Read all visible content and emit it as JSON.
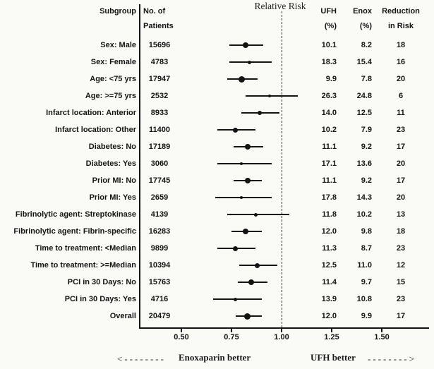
{
  "title": "Relative Risk",
  "colors": {
    "ink": "#131313",
    "background": "#fafaf7"
  },
  "columns": {
    "subgroup": "Subgroup",
    "patients1": "No. of",
    "patients2": "Patients",
    "ufh1": "UFH",
    "ufh2": "(%)",
    "enox1": "Enox",
    "enox2": "(%)",
    "reduction1": "Reduction",
    "reduction2": "in Risk"
  },
  "footer": {
    "left_arrow": "<--------",
    "left_label": "Enoxaparin better",
    "right_label": "UFH better",
    "right_arrow": "-------->"
  },
  "chart_data": {
    "type": "forest",
    "title": "Relative Risk",
    "xlabel": "Relative Risk",
    "xlim": [
      0.29,
      1.73
    ],
    "axis_ticks": [
      0.5,
      0.75,
      1.0,
      1.25,
      1.5
    ],
    "tick_labels": [
      "0.50",
      "0.75",
      "1.00",
      "1.25",
      "1.50"
    ],
    "reference_line": 1.0,
    "legend": "marker size proportional to number of patients",
    "rows": [
      {
        "subgroup": "Sex: Male",
        "patients": "15696",
        "rr": 0.82,
        "ci_low": 0.74,
        "ci_high": 0.91,
        "ufh": "10.1",
        "enox": "8.2",
        "reduction": "18"
      },
      {
        "subgroup": "Sex: Female",
        "patients": "4783",
        "rr": 0.84,
        "ci_low": 0.74,
        "ci_high": 0.95,
        "ufh": "18.3",
        "enox": "15.4",
        "reduction": "16"
      },
      {
        "subgroup": "Age: <75 yrs",
        "patients": "17947",
        "rr": 0.8,
        "ci_low": 0.73,
        "ci_high": 0.88,
        "ufh": "9.9",
        "enox": "7.8",
        "reduction": "20"
      },
      {
        "subgroup": "Age: >=75 yrs",
        "patients": "2532",
        "rr": 0.94,
        "ci_low": 0.82,
        "ci_high": 1.08,
        "ufh": "26.3",
        "enox": "24.8",
        "reduction": "6"
      },
      {
        "subgroup": "Infarct location: Anterior",
        "patients": "8933",
        "rr": 0.89,
        "ci_low": 0.8,
        "ci_high": 0.99,
        "ufh": "14.0",
        "enox": "12.5",
        "reduction": "11"
      },
      {
        "subgroup": "Infarct location: Other",
        "patients": "11400",
        "rr": 0.77,
        "ci_low": 0.68,
        "ci_high": 0.87,
        "ufh": "10.2",
        "enox": "7.9",
        "reduction": "23"
      },
      {
        "subgroup": "Diabetes: No",
        "patients": "17189",
        "rr": 0.83,
        "ci_low": 0.76,
        "ci_high": 0.91,
        "ufh": "11.1",
        "enox": "9.2",
        "reduction": "17"
      },
      {
        "subgroup": "Diabetes: Yes",
        "patients": "3060",
        "rr": 0.8,
        "ci_low": 0.68,
        "ci_high": 0.95,
        "ufh": "17.1",
        "enox": "13.6",
        "reduction": "20"
      },
      {
        "subgroup": "Prior MI: No",
        "patients": "17745",
        "rr": 0.83,
        "ci_low": 0.76,
        "ci_high": 0.9,
        "ufh": "11.1",
        "enox": "9.2",
        "reduction": "17"
      },
      {
        "subgroup": "Prior MI: Yes",
        "patients": "2659",
        "rr": 0.8,
        "ci_low": 0.67,
        "ci_high": 0.95,
        "ufh": "17.8",
        "enox": "14.3",
        "reduction": "20"
      },
      {
        "subgroup": "Fibrinolytic agent: Streptokinase",
        "patients": "4139",
        "rr": 0.87,
        "ci_low": 0.73,
        "ci_high": 1.04,
        "ufh": "11.8",
        "enox": "10.2",
        "reduction": "13"
      },
      {
        "subgroup": "Fibrinolytic agent: Fibrin-specific",
        "patients": "16283",
        "rr": 0.82,
        "ci_low": 0.75,
        "ci_high": 0.9,
        "ufh": "12.0",
        "enox": "9.8",
        "reduction": "18"
      },
      {
        "subgroup": "Time to treatment: <Median",
        "patients": "9899",
        "rr": 0.77,
        "ci_low": 0.68,
        "ci_high": 0.87,
        "ufh": "11.3",
        "enox": "8.7",
        "reduction": "23"
      },
      {
        "subgroup": "Time to treatment: >=Median",
        "patients": "10394",
        "rr": 0.88,
        "ci_low": 0.79,
        "ci_high": 0.98,
        "ufh": "12.5",
        "enox": "11.0",
        "reduction": "12"
      },
      {
        "subgroup": "PCI in 30 Days: No",
        "patients": "15763",
        "rr": 0.85,
        "ci_low": 0.78,
        "ci_high": 0.93,
        "ufh": "11.4",
        "enox": "9.7",
        "reduction": "15"
      },
      {
        "subgroup": "PCI in 30 Days: Yes",
        "patients": "4716",
        "rr": 0.77,
        "ci_low": 0.66,
        "ci_high": 0.9,
        "ufh": "13.9",
        "enox": "10.8",
        "reduction": "23"
      },
      {
        "subgroup": "Overall",
        "patients": "20479",
        "rr": 0.83,
        "ci_low": 0.77,
        "ci_high": 0.9,
        "ufh": "12.0",
        "enox": "9.9",
        "reduction": "17"
      }
    ]
  }
}
